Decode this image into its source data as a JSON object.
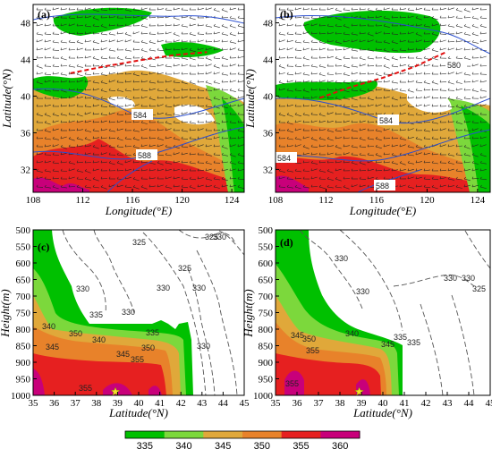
{
  "chart_data": [
    {
      "type": "heatmap",
      "panel": "(a)",
      "xlabel": "Longitude(°E)",
      "ylabel": "Latitude(°N)",
      "xlim": [
        108,
        125
      ],
      "ylim": [
        29.5,
        50
      ],
      "xticks": [
        108,
        112,
        116,
        120,
        124
      ],
      "yticks": [
        32,
        36,
        40,
        44,
        48
      ],
      "contour_labels": [
        "584",
        "584",
        "588"
      ],
      "front_line": [
        [
          111,
          42.5
        ],
        [
          114,
          43.3
        ],
        [
          117,
          44
        ],
        [
          119.5,
          44.5
        ],
        [
          122,
          44.8
        ]
      ]
    },
    {
      "type": "heatmap",
      "panel": "(b)",
      "xlabel": "Longitude(°E)",
      "ylabel": "Latitude(°N)",
      "xlim": [
        108,
        125
      ],
      "ylim": [
        29.5,
        50
      ],
      "xticks": [
        108,
        112,
        116,
        120,
        124
      ],
      "yticks": [
        32,
        36,
        40,
        44,
        48
      ],
      "contour_labels": [
        "584",
        "584",
        "588",
        "580"
      ],
      "front_line": [
        [
          111.5,
          39.8
        ],
        [
          114,
          41
        ],
        [
          116.5,
          42
        ],
        [
          119,
          43.2
        ],
        [
          121.5,
          44.8
        ]
      ]
    },
    {
      "type": "heatmap",
      "panel": "(c)",
      "xlabel": "Latitude(°N)",
      "ylabel": "Height(m)",
      "xlim": [
        35,
        45
      ],
      "ylim": [
        1000,
        500
      ],
      "xticks": [
        35,
        36,
        37,
        38,
        39,
        40,
        41,
        42,
        43,
        44,
        45
      ],
      "yticks": [
        500,
        550,
        600,
        650,
        700,
        750,
        800,
        850,
        900,
        950,
        1000
      ],
      "contour_labels": [
        "325",
        "325",
        "325",
        "330",
        "330",
        "330",
        "330",
        "330",
        "330",
        "335",
        "340",
        "345",
        "350",
        "355",
        "340",
        "335",
        "345",
        "350",
        "355"
      ],
      "star": [
        38.9,
        1000
      ]
    },
    {
      "type": "heatmap",
      "panel": "(d)",
      "xlabel": "Latitude(°N)",
      "ylabel": "Height(m)",
      "xlim": [
        35,
        45
      ],
      "ylim": [
        1000,
        500
      ],
      "xticks": [
        35,
        36,
        37,
        38,
        39,
        40,
        41,
        42,
        43,
        44,
        45
      ],
      "yticks": [
        500,
        550,
        600,
        650,
        700,
        750,
        800,
        850,
        900,
        950,
        1000
      ],
      "contour_labels": [
        "330",
        "330",
        "330",
        "330",
        "325",
        "335",
        "340",
        "345",
        "350",
        "355",
        "355",
        "345",
        "335"
      ],
      "star": [
        38.9,
        1000
      ]
    }
  ],
  "colorbar": {
    "levels": [
      "335",
      "340",
      "345",
      "350",
      "355",
      "360"
    ],
    "colors": [
      "#00c000",
      "#7cd83c",
      "#e0a83a",
      "#e8822a",
      "#e62020",
      "#c8007a"
    ]
  }
}
